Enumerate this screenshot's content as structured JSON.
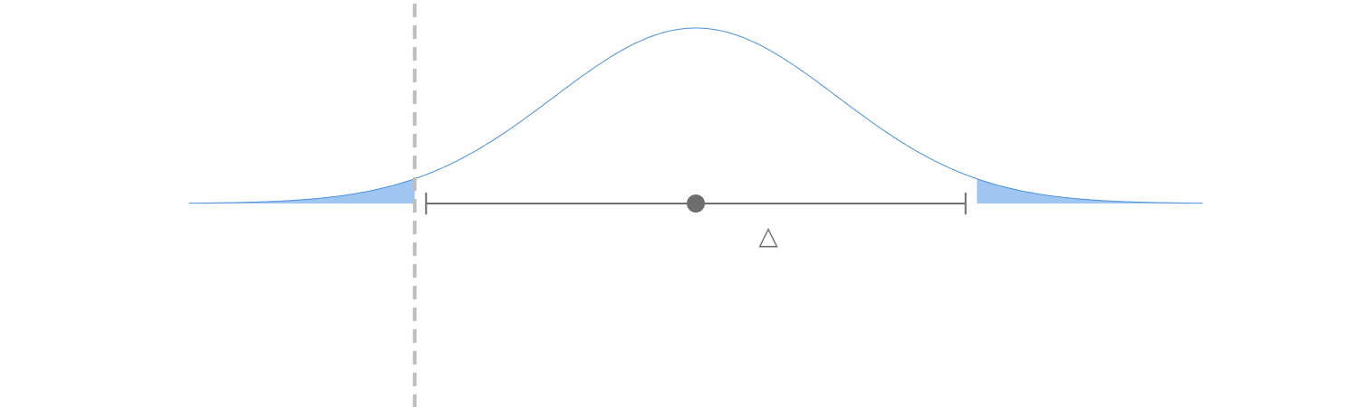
{
  "diagram": {
    "type": "normal-distribution-interval",
    "distribution": {
      "mean": 0,
      "sd": 1,
      "x_range": [
        -3.57,
        3.57
      ]
    },
    "interval": {
      "lower": -1.9,
      "upper": 1.9
    },
    "reference_line_x": -1.98,
    "shaded_tails": true,
    "marker_symbol": "△",
    "colors": {
      "curve": "#4a8fe0",
      "tail_fill": "#9fc6f3",
      "interval": "#6d6d6d",
      "reference_line": "#bdbdbd",
      "point": "#6d6d6d",
      "marker": "#6d6d6d"
    }
  }
}
